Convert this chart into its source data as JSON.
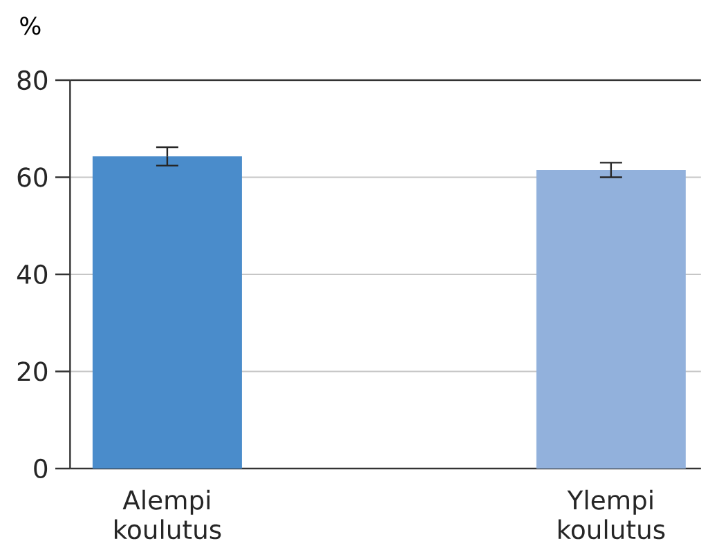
{
  "chart_data": {
    "type": "bar",
    "ylabel": "%",
    "categories": [
      "Alempi koulutus",
      "Ylempi koulutus"
    ],
    "values": [
      64.3,
      61.5
    ],
    "colors": [
      "#4a8ccb",
      "#92b1dc"
    ],
    "errors": [
      1.9,
      1.5
    ],
    "ylim": [
      0,
      80
    ],
    "yticks": [
      0,
      20,
      40,
      60,
      80
    ],
    "grid": "y"
  }
}
